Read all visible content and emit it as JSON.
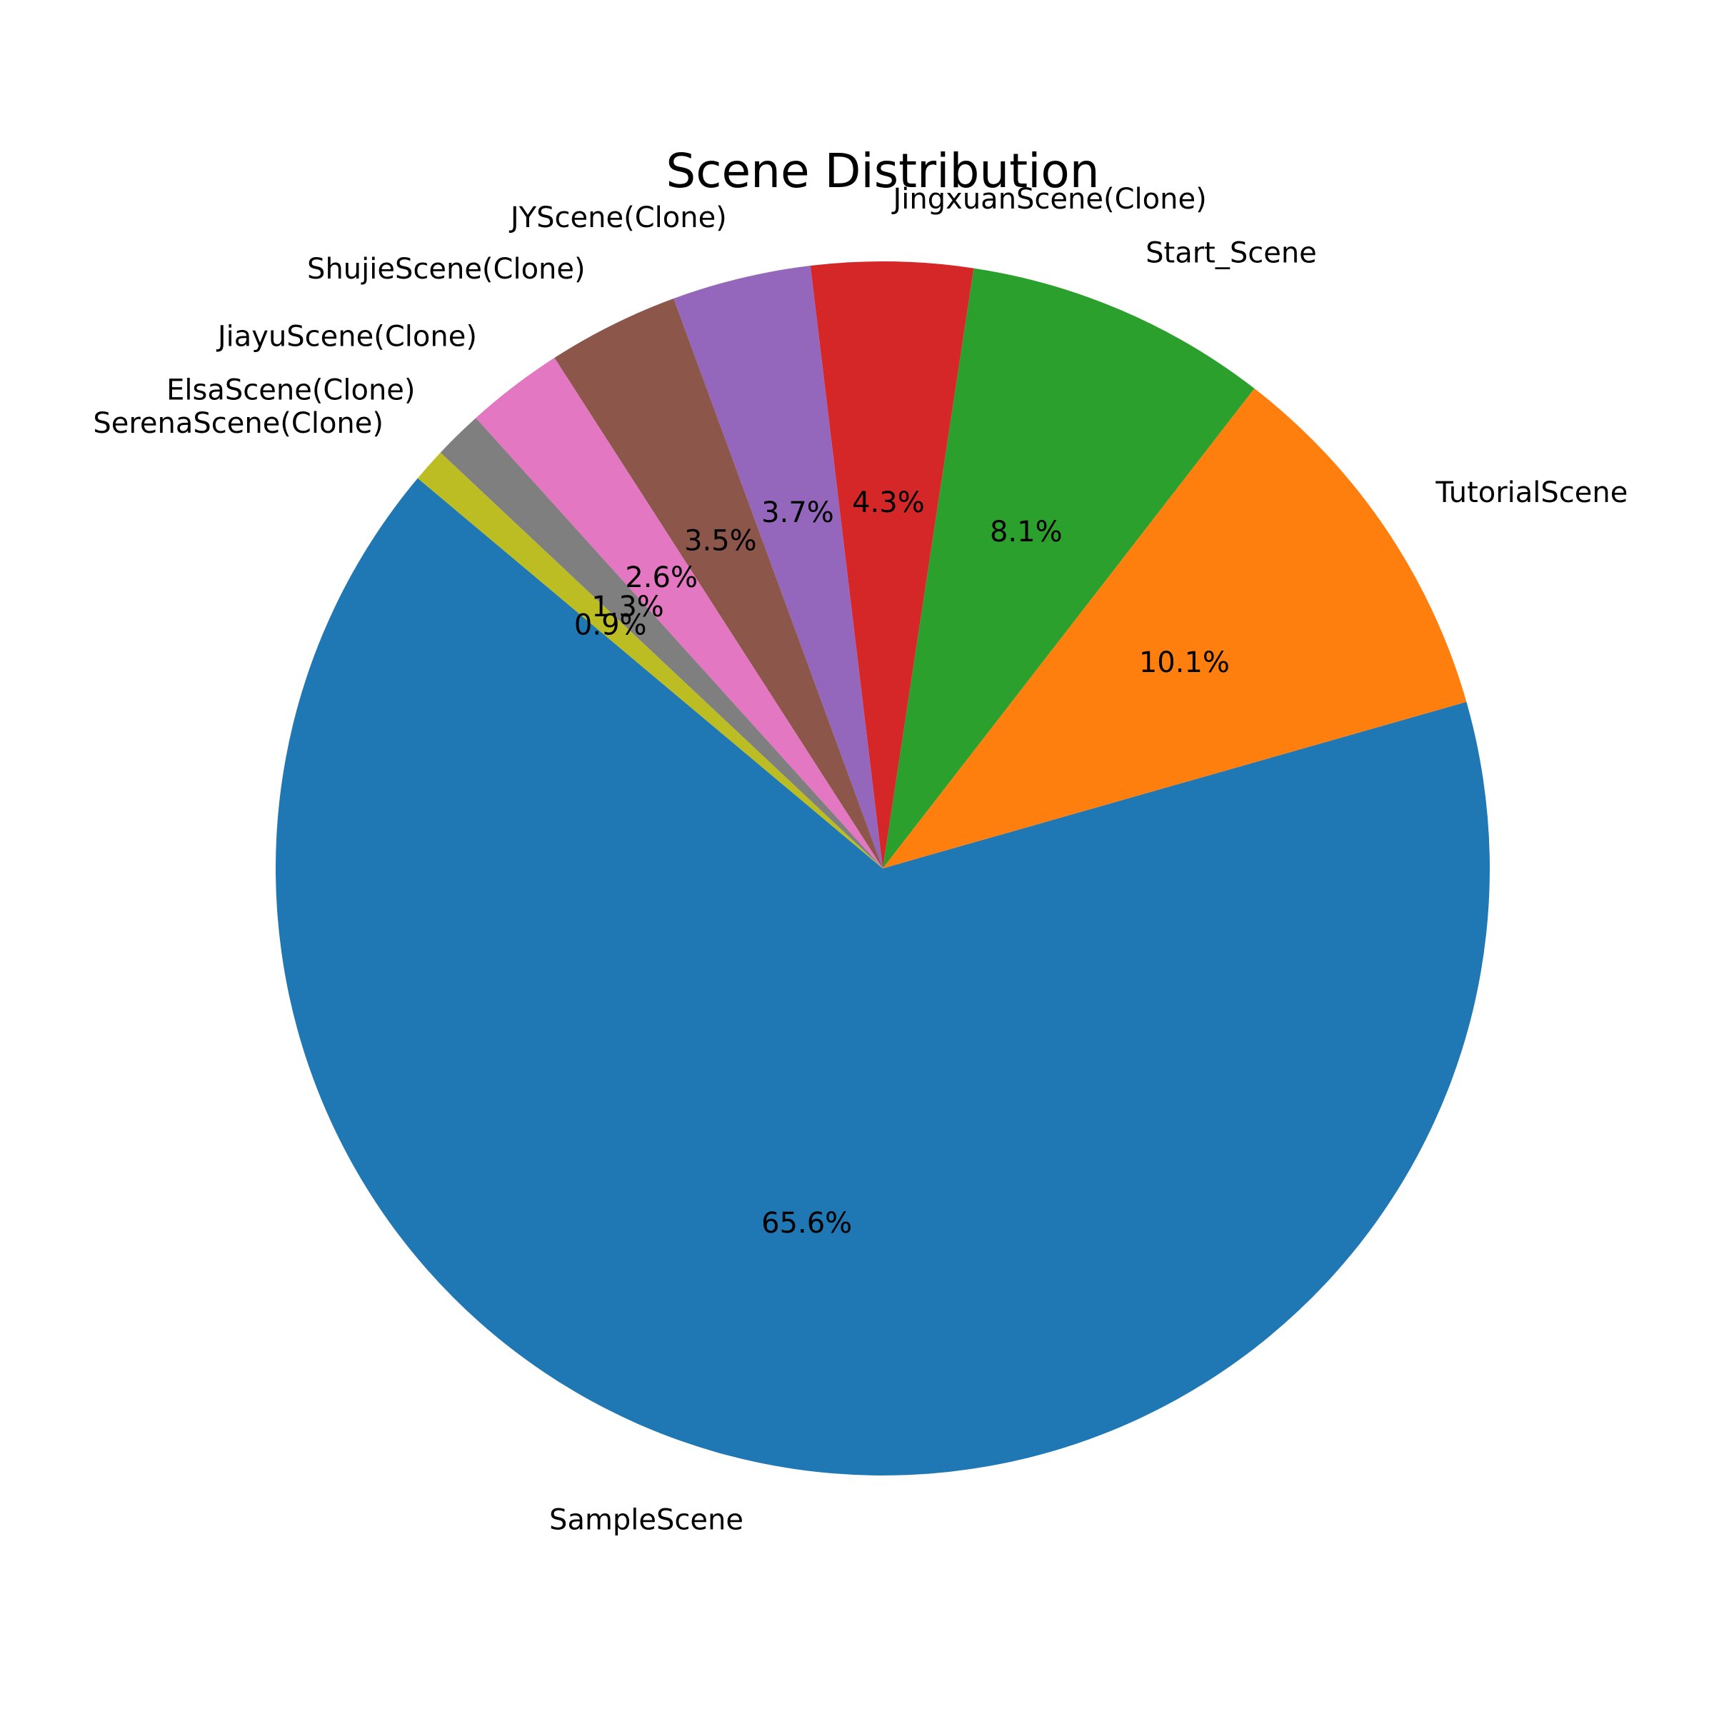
{
  "chart_data": {
    "type": "pie",
    "title": "Scene Distribution",
    "start_angle_deg": 140,
    "direction": "counterclockwise",
    "slices": [
      {
        "label": "SampleScene",
        "value": 65.6,
        "pct_text": "65.6%",
        "color": "#1f77b4"
      },
      {
        "label": "TutorialScene",
        "value": 10.1,
        "pct_text": "10.1%",
        "color": "#ff7f0e"
      },
      {
        "label": "Start_Scene",
        "value": 8.1,
        "pct_text": "8.1%",
        "color": "#2ca02c"
      },
      {
        "label": "JingxuanScene(Clone)",
        "value": 4.3,
        "pct_text": "4.3%",
        "color": "#d62728"
      },
      {
        "label": "JYScene(Clone)",
        "value": 3.7,
        "pct_text": "3.7%",
        "color": "#9467bd"
      },
      {
        "label": "ShujieScene(Clone)",
        "value": 3.5,
        "pct_text": "3.5%",
        "color": "#8c564b"
      },
      {
        "label": "JiayuScene(Clone)",
        "value": 2.6,
        "pct_text": "2.6%",
        "color": "#e377c2"
      },
      {
        "label": "ElsaScene(Clone)",
        "value": 1.3,
        "pct_text": "1.3%",
        "color": "#7f7f7f"
      },
      {
        "label": "SerenaScene(Clone)",
        "value": 0.9,
        "pct_text": "0.9%",
        "color": "#bcbd22"
      }
    ]
  }
}
